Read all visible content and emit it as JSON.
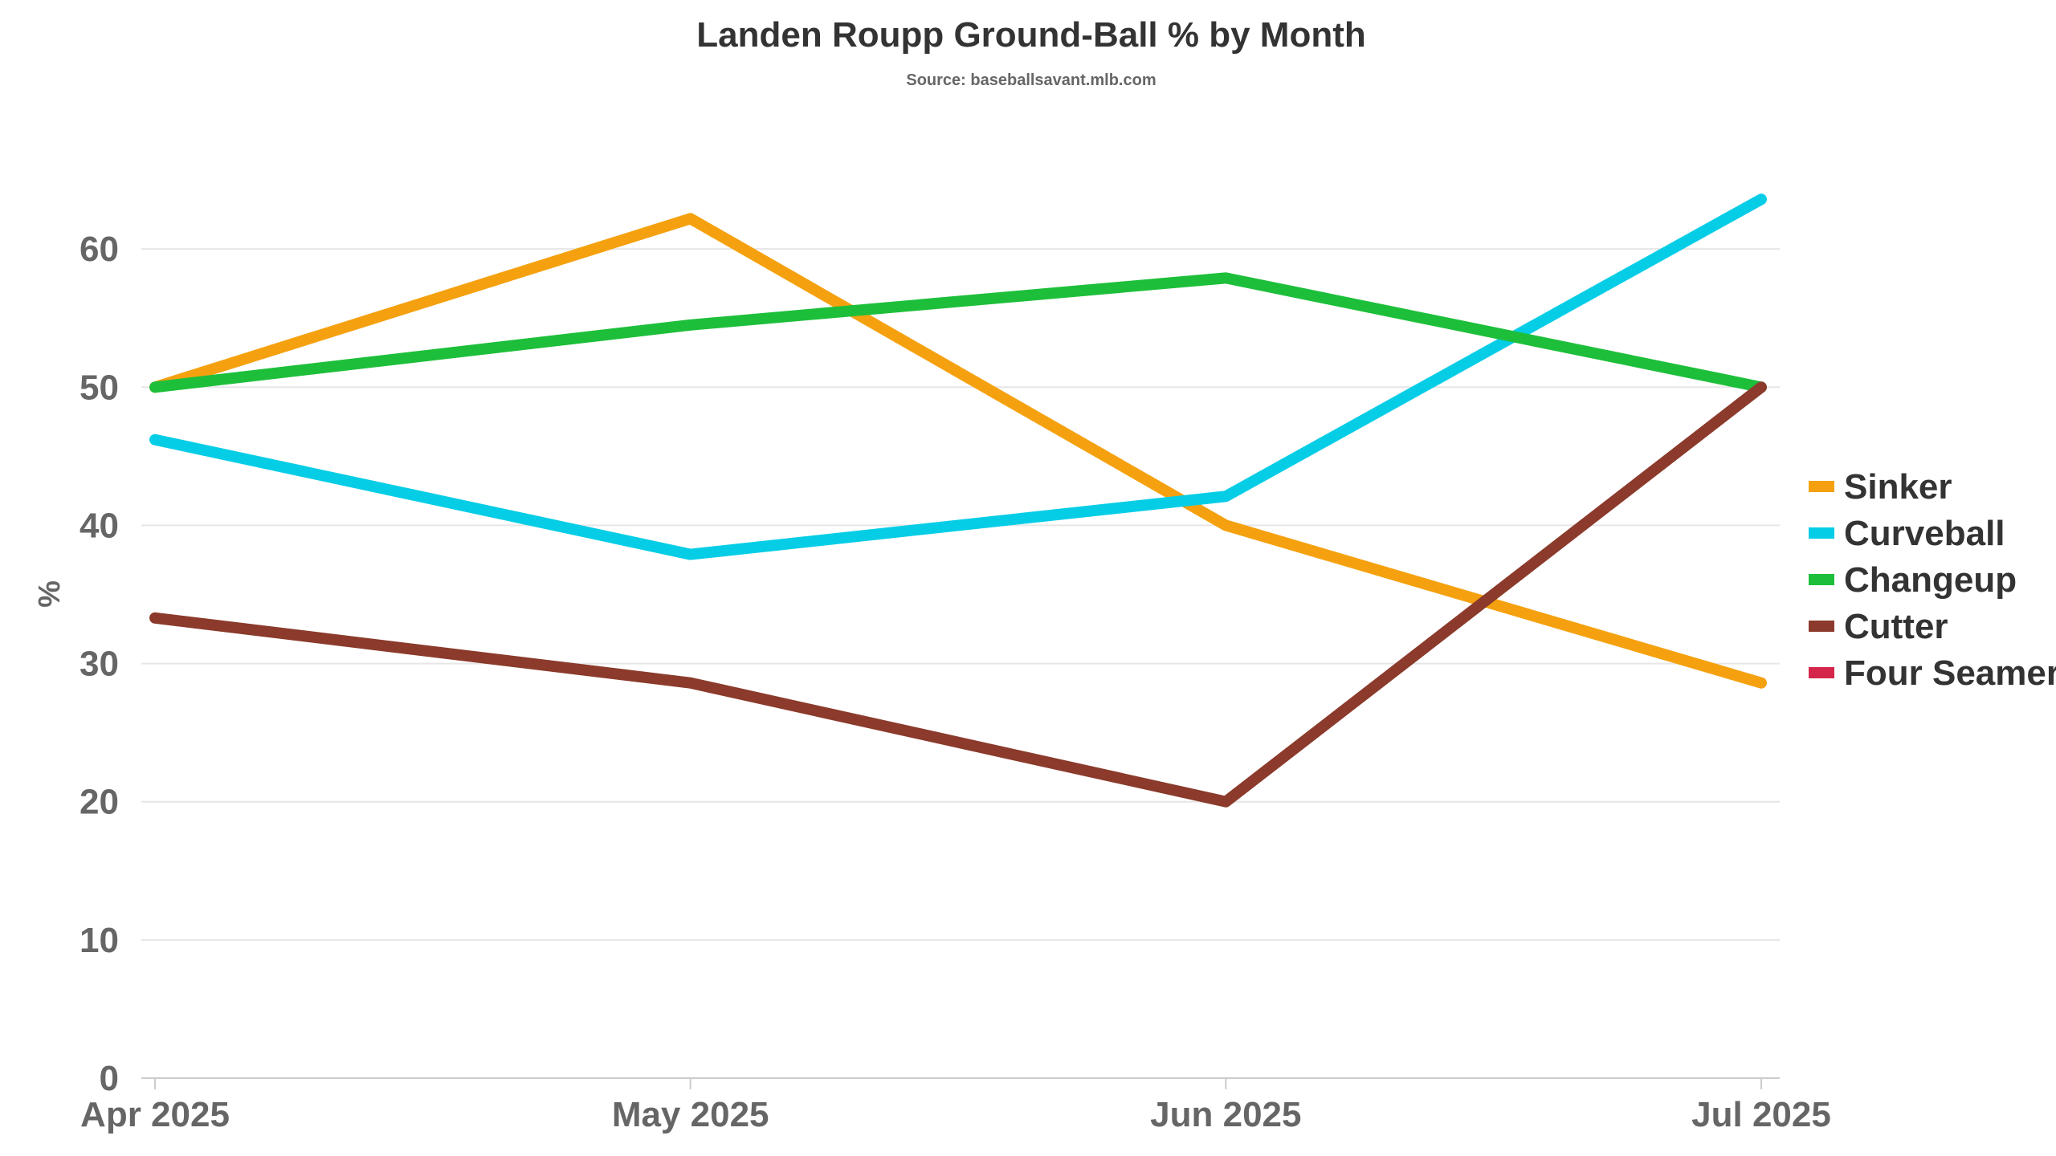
{
  "chart_data": {
    "type": "line",
    "title": "Landen Roupp Ground-Ball % by Month",
    "subtitle": "Source: baseballsavant.mlb.com",
    "ylabel": "%",
    "xlabel": "",
    "categories": [
      "Apr 2025",
      "May 2025",
      "Jun 2025",
      "Jul 2025"
    ],
    "ylim": [
      0,
      70
    ],
    "yticks": [
      0,
      10,
      20,
      30,
      40,
      50,
      60
    ],
    "grid": true,
    "legend_position": "right",
    "series": [
      {
        "name": "Sinker",
        "color": "#f5a10f",
        "values": [
          50,
          62.2,
          40,
          28.6
        ]
      },
      {
        "name": "Curveball",
        "color": "#06cde6",
        "values": [
          46.2,
          37.9,
          42.1,
          63.6
        ]
      },
      {
        "name": "Changeup",
        "color": "#1dbf3a",
        "values": [
          50,
          54.5,
          57.9,
          50
        ]
      },
      {
        "name": "Cutter",
        "color": "#8b3a2b",
        "values": [
          33.3,
          28.6,
          20,
          50
        ]
      },
      {
        "name": "Four Seamer",
        "color": "#d4264a",
        "values": [
          null,
          null,
          null,
          null
        ]
      }
    ]
  }
}
